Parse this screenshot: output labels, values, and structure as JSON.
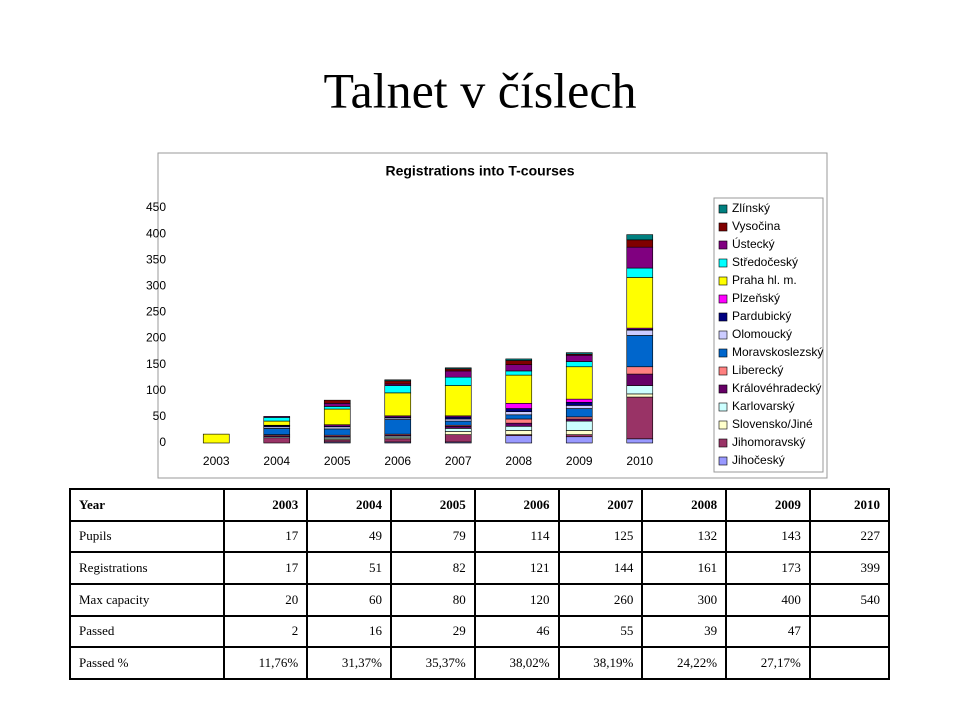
{
  "title": "Talnet v číslech",
  "chart_data": {
    "type": "bar",
    "stacked": true,
    "title": "Registrations into T-courses",
    "categories": [
      "2003",
      "2004",
      "2005",
      "2006",
      "2007",
      "2008",
      "2009",
      "2010"
    ],
    "ylim": [
      0,
      450
    ],
    "yticks": [
      0,
      50,
      100,
      150,
      200,
      250,
      300,
      350,
      400,
      450
    ],
    "grid": false,
    "legend": "right",
    "series": [
      {
        "name": "Jihočeský",
        "color": "#9999ff",
        "values": [
          0,
          0,
          2,
          2,
          2,
          14,
          12,
          8
        ]
      },
      {
        "name": "Jihomoravský",
        "color": "#993366",
        "values": [
          0,
          10,
          4,
          6,
          14,
          2,
          4,
          80
        ]
      },
      {
        "name": "Slovensko/Jiné",
        "color": "#ffffcc",
        "values": [
          0,
          0,
          2,
          2,
          6,
          8,
          8,
          6
        ]
      },
      {
        "name": "Karlovarský",
        "color": "#ccffff",
        "values": [
          0,
          2,
          3,
          3,
          6,
          8,
          18,
          16
        ]
      },
      {
        "name": "Královéhradecký",
        "color": "#660066",
        "values": [
          0,
          2,
          2,
          2,
          4,
          6,
          4,
          22
        ]
      },
      {
        "name": "Liberecký",
        "color": "#ff8080",
        "values": [
          0,
          2,
          2,
          2,
          2,
          8,
          4,
          14
        ]
      },
      {
        "name": "Moravskoslezský",
        "color": "#0066cc",
        "values": [
          0,
          12,
          12,
          28,
          8,
          8,
          16,
          60
        ]
      },
      {
        "name": "Olomoucký",
        "color": "#ccccff",
        "values": [
          0,
          3,
          4,
          3,
          4,
          6,
          6,
          10
        ]
      },
      {
        "name": "Pardubický",
        "color": "#000080",
        "values": [
          0,
          2,
          2,
          2,
          4,
          6,
          6,
          2
        ]
      },
      {
        "name": "Plzeňský",
        "color": "#ff00ff",
        "values": [
          0,
          1,
          2,
          2,
          2,
          10,
          6,
          2
        ]
      },
      {
        "name": "Praha hl. m.",
        "color": "#ffff00",
        "values": [
          17,
          8,
          30,
          44,
          58,
          54,
          62,
          97
        ]
      },
      {
        "name": "Středočeský",
        "color": "#00ffff",
        "values": [
          0,
          7,
          5,
          14,
          16,
          8,
          10,
          18
        ]
      },
      {
        "name": "Ústecký",
        "color": "#800080",
        "values": [
          0,
          2,
          6,
          3,
          12,
          12,
          12,
          40
        ]
      },
      {
        "name": "Vysočina",
        "color": "#800000",
        "values": [
          0,
          0,
          6,
          6,
          4,
          8,
          2,
          14
        ]
      },
      {
        "name": "Zlínský",
        "color": "#008080",
        "values": [
          0,
          0,
          0,
          2,
          2,
          3,
          3,
          10
        ]
      }
    ]
  },
  "table": {
    "rows": [
      [
        "Year",
        "2003",
        "2004",
        "2005",
        "2006",
        "2007",
        "2008",
        "2009",
        "2010"
      ],
      [
        "Pupils",
        "17",
        "49",
        "79",
        "114",
        "125",
        "132",
        "143",
        "227"
      ],
      [
        "Registrations",
        "17",
        "51",
        "82",
        "121",
        "144",
        "161",
        "173",
        "399"
      ],
      [
        "Max capacity",
        "20",
        "60",
        "80",
        "120",
        "260",
        "300",
        "400",
        "540"
      ],
      [
        "Passed",
        "2",
        "16",
        "29",
        "46",
        "55",
        "39",
        "47"
      ],
      [
        "Passed %",
        "11,76%",
        "31,37%",
        "35,37%",
        "38,02%",
        "38,19%",
        "24,22%",
        "27,17%"
      ]
    ]
  }
}
